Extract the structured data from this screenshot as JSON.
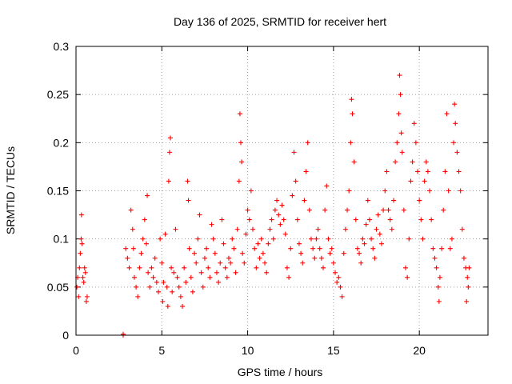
{
  "chart_data": {
    "type": "scatter",
    "title": "Day 136 of 2025, SRMTID for receiver hert",
    "xlabel": "GPS time / hours",
    "ylabel": "SRMTID / TECUs",
    "xlim": [
      0,
      24
    ],
    "ylim": [
      0,
      0.3
    ],
    "xticks": [
      0,
      5,
      10,
      15,
      20
    ],
    "xtick_labels": [
      "0",
      "5",
      "10",
      "15",
      "20"
    ],
    "yticks": [
      0,
      0.05,
      0.1,
      0.15,
      0.2,
      0.25,
      0.3
    ],
    "ytick_labels": [
      "0",
      "0.05",
      "0.1",
      "0.15",
      "0.2",
      "0.25",
      "0.3"
    ],
    "grid": true,
    "marker": "plus",
    "color": "#ff0000",
    "series": [
      {
        "name": "SRMTID",
        "points": [
          [
            0.05,
            0.05
          ],
          [
            0.1,
            0.06
          ],
          [
            0.15,
            0.04
          ],
          [
            0.2,
            0.07
          ],
          [
            0.25,
            0.085
          ],
          [
            0.3,
            0.1
          ],
          [
            0.32,
            0.125
          ],
          [
            0.35,
            0.095
          ],
          [
            0.4,
            0.06
          ],
          [
            0.45,
            0.055
          ],
          [
            0.5,
            0.07
          ],
          [
            0.55,
            0.065
          ],
          [
            0.6,
            0.035
          ],
          [
            0.65,
            0.04
          ],
          [
            2.75,
            0.0
          ],
          [
            2.75,
            0.001
          ],
          [
            2.9,
            0.09
          ],
          [
            3.0,
            0.08
          ],
          [
            3.1,
            0.07
          ],
          [
            3.2,
            0.13
          ],
          [
            3.3,
            0.11
          ],
          [
            3.35,
            0.09
          ],
          [
            3.4,
            0.06
          ],
          [
            3.5,
            0.05
          ],
          [
            3.6,
            0.04
          ],
          [
            3.7,
            0.07
          ],
          [
            3.8,
            0.085
          ],
          [
            3.9,
            0.1
          ],
          [
            4.0,
            0.12
          ],
          [
            4.1,
            0.095
          ],
          [
            4.15,
            0.145
          ],
          [
            4.2,
            0.065
          ],
          [
            4.3,
            0.05
          ],
          [
            4.4,
            0.07
          ],
          [
            4.5,
            0.06
          ],
          [
            4.6,
            0.08
          ],
          [
            4.7,
            0.055
          ],
          [
            4.8,
            0.045
          ],
          [
            4.9,
            0.1
          ],
          [
            5.0,
            0.075
          ],
          [
            5.05,
            0.035
          ],
          [
            5.1,
            0.055
          ],
          [
            5.2,
            0.105
          ],
          [
            5.3,
            0.05
          ],
          [
            5.35,
            0.03
          ],
          [
            5.4,
            0.16
          ],
          [
            5.45,
            0.19
          ],
          [
            5.5,
            0.205
          ],
          [
            5.55,
            0.07
          ],
          [
            5.6,
            0.045
          ],
          [
            5.7,
            0.065
          ],
          [
            5.8,
            0.11
          ],
          [
            5.9,
            0.06
          ],
          [
            6.0,
            0.05
          ],
          [
            6.1,
            0.04
          ],
          [
            6.2,
            0.03
          ],
          [
            6.3,
            0.07
          ],
          [
            6.4,
            0.055
          ],
          [
            6.5,
            0.16
          ],
          [
            6.55,
            0.14
          ],
          [
            6.6,
            0.09
          ],
          [
            6.7,
            0.06
          ],
          [
            6.8,
            0.045
          ],
          [
            6.9,
            0.085
          ],
          [
            7.0,
            0.075
          ],
          [
            7.1,
            0.1
          ],
          [
            7.2,
            0.125
          ],
          [
            7.3,
            0.065
          ],
          [
            7.4,
            0.05
          ],
          [
            7.5,
            0.08
          ],
          [
            7.6,
            0.09
          ],
          [
            7.7,
            0.07
          ],
          [
            7.8,
            0.06
          ],
          [
            7.9,
            0.115
          ],
          [
            8.0,
            0.1
          ],
          [
            8.1,
            0.085
          ],
          [
            8.2,
            0.065
          ],
          [
            8.3,
            0.055
          ],
          [
            8.4,
            0.075
          ],
          [
            8.5,
            0.12
          ],
          [
            8.6,
            0.095
          ],
          [
            8.7,
            0.07
          ],
          [
            8.8,
            0.06
          ],
          [
            8.9,
            0.08
          ],
          [
            9.0,
            0.075
          ],
          [
            9.1,
            0.1
          ],
          [
            9.2,
            0.09
          ],
          [
            9.3,
            0.065
          ],
          [
            9.4,
            0.11
          ],
          [
            9.5,
            0.16
          ],
          [
            9.55,
            0.23
          ],
          [
            9.6,
            0.2
          ],
          [
            9.65,
            0.18
          ],
          [
            9.7,
            0.085
          ],
          [
            9.8,
            0.075
          ],
          [
            9.9,
            0.105
          ],
          [
            10.0,
            0.13
          ],
          [
            10.1,
            0.12
          ],
          [
            10.2,
            0.15
          ],
          [
            10.3,
            0.11
          ],
          [
            10.4,
            0.09
          ],
          [
            10.5,
            0.07
          ],
          [
            10.6,
            0.095
          ],
          [
            10.7,
            0.08
          ],
          [
            10.8,
            0.1
          ],
          [
            10.9,
            0.085
          ],
          [
            11.0,
            0.075
          ],
          [
            11.1,
            0.065
          ],
          [
            11.2,
            0.095
          ],
          [
            11.3,
            0.11
          ],
          [
            11.4,
            0.12
          ],
          [
            11.5,
            0.1
          ],
          [
            11.6,
            0.13
          ],
          [
            11.7,
            0.14
          ],
          [
            11.8,
            0.125
          ],
          [
            11.9,
            0.115
          ],
          [
            12.0,
            0.135
          ],
          [
            12.1,
            0.12
          ],
          [
            12.2,
            0.105
          ],
          [
            12.3,
            0.07
          ],
          [
            12.4,
            0.06
          ],
          [
            12.5,
            0.09
          ],
          [
            12.6,
            0.145
          ],
          [
            12.7,
            0.19
          ],
          [
            12.8,
            0.16
          ],
          [
            12.9,
            0.12
          ],
          [
            13.0,
            0.095
          ],
          [
            13.1,
            0.085
          ],
          [
            13.2,
            0.075
          ],
          [
            13.3,
            0.14
          ],
          [
            13.4,
            0.17
          ],
          [
            13.5,
            0.2
          ],
          [
            13.6,
            0.13
          ],
          [
            13.7,
            0.1
          ],
          [
            13.8,
            0.09
          ],
          [
            13.9,
            0.08
          ],
          [
            14.0,
            0.1
          ],
          [
            14.1,
            0.11
          ],
          [
            14.2,
            0.09
          ],
          [
            14.3,
            0.08
          ],
          [
            14.4,
            0.07
          ],
          [
            14.5,
            0.13
          ],
          [
            14.6,
            0.155
          ],
          [
            14.7,
            0.1
          ],
          [
            14.8,
            0.085
          ],
          [
            14.9,
            0.09
          ],
          [
            15.0,
            0.075
          ],
          [
            15.1,
            0.065
          ],
          [
            15.2,
            0.055
          ],
          [
            15.3,
            0.06
          ],
          [
            15.4,
            0.05
          ],
          [
            15.5,
            0.04
          ],
          [
            15.6,
            0.085
          ],
          [
            15.7,
            0.11
          ],
          [
            15.8,
            0.13
          ],
          [
            15.9,
            0.15
          ],
          [
            16.0,
            0.2
          ],
          [
            16.05,
            0.245
          ],
          [
            16.1,
            0.23
          ],
          [
            16.2,
            0.18
          ],
          [
            16.3,
            0.12
          ],
          [
            16.4,
            0.09
          ],
          [
            16.5,
            0.085
          ],
          [
            16.6,
            0.075
          ],
          [
            16.7,
            0.1
          ],
          [
            16.8,
            0.095
          ],
          [
            16.9,
            0.115
          ],
          [
            17.0,
            0.14
          ],
          [
            17.1,
            0.12
          ],
          [
            17.2,
            0.1
          ],
          [
            17.3,
            0.09
          ],
          [
            17.4,
            0.08
          ],
          [
            17.5,
            0.11
          ],
          [
            17.6,
            0.125
          ],
          [
            17.7,
            0.105
          ],
          [
            17.8,
            0.095
          ],
          [
            17.9,
            0.13
          ],
          [
            18.0,
            0.15
          ],
          [
            18.1,
            0.17
          ],
          [
            18.2,
            0.13
          ],
          [
            18.3,
            0.12
          ],
          [
            18.4,
            0.11
          ],
          [
            18.5,
            0.14
          ],
          [
            18.6,
            0.18
          ],
          [
            18.7,
            0.2
          ],
          [
            18.8,
            0.23
          ],
          [
            18.85,
            0.27
          ],
          [
            18.9,
            0.25
          ],
          [
            18.95,
            0.21
          ],
          [
            19.0,
            0.19
          ],
          [
            19.1,
            0.13
          ],
          [
            19.2,
            0.07
          ],
          [
            19.3,
            0.06
          ],
          [
            19.4,
            0.1
          ],
          [
            19.5,
            0.16
          ],
          [
            19.6,
            0.18
          ],
          [
            19.7,
            0.22
          ],
          [
            19.8,
            0.2
          ],
          [
            19.9,
            0.17
          ],
          [
            20.0,
            0.14
          ],
          [
            20.1,
            0.12
          ],
          [
            20.2,
            0.1
          ],
          [
            20.3,
            0.16
          ],
          [
            20.4,
            0.18
          ],
          [
            20.5,
            0.17
          ],
          [
            20.6,
            0.15
          ],
          [
            20.7,
            0.12
          ],
          [
            20.8,
            0.09
          ],
          [
            20.9,
            0.08
          ],
          [
            21.0,
            0.07
          ],
          [
            21.1,
            0.05
          ],
          [
            21.15,
            0.035
          ],
          [
            21.2,
            0.06
          ],
          [
            21.3,
            0.09
          ],
          [
            21.4,
            0.13
          ],
          [
            21.5,
            0.17
          ],
          [
            21.6,
            0.23
          ],
          [
            21.7,
            0.15
          ],
          [
            21.8,
            0.09
          ],
          [
            21.9,
            0.1
          ],
          [
            22.0,
            0.2
          ],
          [
            22.05,
            0.24
          ],
          [
            22.1,
            0.22
          ],
          [
            22.2,
            0.19
          ],
          [
            22.3,
            0.17
          ],
          [
            22.4,
            0.15
          ],
          [
            22.5,
            0.11
          ],
          [
            22.6,
            0.08
          ],
          [
            22.7,
            0.07
          ],
          [
            22.75,
            0.035
          ],
          [
            22.8,
            0.06
          ],
          [
            22.85,
            0.05
          ],
          [
            22.9,
            0.07
          ]
        ]
      }
    ]
  }
}
